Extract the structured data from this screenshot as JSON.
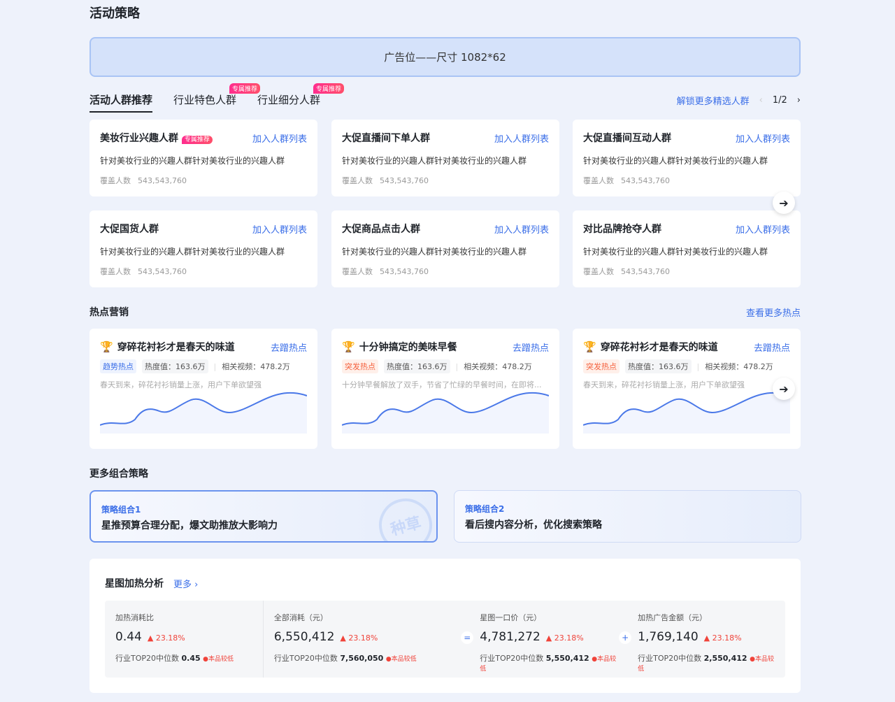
{
  "page_title": "活动策略",
  "ad_banner": "广告位——尺寸 1082*62",
  "tabs": [
    {
      "label": "活动人群推荐",
      "badge": ""
    },
    {
      "label": "行业特色人群",
      "badge": "专属推荐"
    },
    {
      "label": "行业细分人群",
      "badge": "专属推荐"
    }
  ],
  "unlock_link": "解锁更多精选人群",
  "pager": "1/2",
  "crowd_cards": [
    {
      "title": "美妆行业兴趣人群",
      "badge": "专属推荐",
      "action": "加入人群列表",
      "desc": "针对美妆行业的兴趣人群针对美妆行业的兴趣人群",
      "cover_label": "覆盖人数",
      "cover": "543,543,760"
    },
    {
      "title": "大促直播间下单人群",
      "badge": "",
      "action": "加入人群列表",
      "desc": "针对美妆行业的兴趣人群针对美妆行业的兴趣人群",
      "cover_label": "覆盖人数",
      "cover": "543,543,760"
    },
    {
      "title": "大促直播间互动人群",
      "badge": "",
      "action": "加入人群列表",
      "desc": "针对美妆行业的兴趣人群针对美妆行业的兴趣人群",
      "cover_label": "覆盖人数",
      "cover": "543,543,760"
    },
    {
      "title": "大促国货人群",
      "badge": "",
      "action": "加入人群列表",
      "desc": "针对美妆行业的兴趣人群针对美妆行业的兴趣人群",
      "cover_label": "覆盖人数",
      "cover": "543,543,760"
    },
    {
      "title": "大促商品点击人群",
      "badge": "",
      "action": "加入人群列表",
      "desc": "针对美妆行业的兴趣人群针对美妆行业的兴趣人群",
      "cover_label": "覆盖人数",
      "cover": "543,543,760"
    },
    {
      "title": "对比品牌抢夺人群",
      "badge": "",
      "action": "加入人群列表",
      "desc": "针对美妆行业的兴趣人群针对美妆行业的兴趣人群",
      "cover_label": "覆盖人数",
      "cover": "543,543,760"
    }
  ],
  "hot_section": {
    "title": "热点营销",
    "more": "查看更多热点"
  },
  "hot_cards": [
    {
      "rank": "1",
      "title": "穿碎花衬衫才是春天的味道",
      "action": "去蹭热点",
      "tag": "趋势热点",
      "tag_color": "blue",
      "heat": "热度值：163.6万",
      "videos": "相关视频：478.2万",
      "desc": "春天到来，碎花衬衫销量上涨，用户下单欲望强"
    },
    {
      "rank": "2",
      "title": "十分钟搞定的美味早餐",
      "action": "去蹭热点",
      "tag": "突发热点",
      "tag_color": "red",
      "heat": "热度值：163.6万",
      "videos": "相关视频：478.2万",
      "desc": "十分钟早餐解放了双手，节省了忙绿的早餐时间，在即将..."
    },
    {
      "rank": "1",
      "title": "穿碎花衬衫才是春天的味道",
      "action": "去蹭热点",
      "tag": "突发热点",
      "tag_color": "red",
      "heat": "热度值：163.6万",
      "videos": "相关视频：478.2万",
      "desc": "春天到来，碎花衬衫销量上涨，用户下单欲望强"
    }
  ],
  "combo_section": {
    "title": "更多组合策略"
  },
  "combos": [
    {
      "key": "策略组合1",
      "value": "星推预算合理分配，爆文助推放大影响力",
      "stamp": "种草"
    },
    {
      "key": "策略组合2",
      "value": "看后搜内容分析，优化搜索策略"
    }
  ],
  "analysis": {
    "title": "星图加热分析",
    "more": "更多 ›",
    "metrics": [
      {
        "label": "加热消耗比",
        "value": "0.44",
        "change": "▲ 23.18%",
        "bench_label": "行业TOP20中位数",
        "bench": "0.45",
        "note": "本品较低",
        "op": ""
      },
      {
        "label": "全部消耗（元）",
        "value": "6,550,412",
        "change": "▲ 23.18%",
        "bench_label": "行业TOP20中位数",
        "bench": "7,560,050",
        "note": "本品较低",
        "op": ""
      },
      {
        "label": "星图一口价（元）",
        "value": "4,781,272",
        "change": "▲ 23.18%",
        "bench_label": "行业TOP20中位数",
        "bench": "5,550,412",
        "note": "本品较低",
        "op": "="
      },
      {
        "label": "加热广告金额（元）",
        "value": "1,769,140",
        "change": "▲ 23.18%",
        "bench_label": "行业TOP20中位数",
        "bench": "2,550,412",
        "note": "本品较低",
        "op": "+"
      }
    ]
  },
  "colors": {
    "accent": "#3a6ee8",
    "badge": "#ff2d8e",
    "up": "#f0433a"
  }
}
